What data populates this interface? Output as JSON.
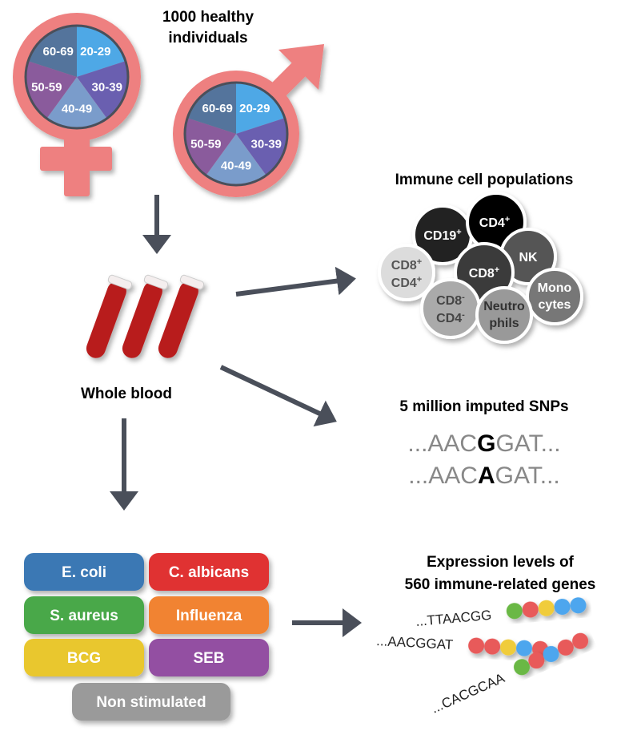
{
  "cohort": {
    "title_line1": "1000 healthy",
    "title_line2": "individuals",
    "age_groups": [
      {
        "label": "20-29",
        "color": "#4ea8e6"
      },
      {
        "label": "30-39",
        "color": "#6a5fb0"
      },
      {
        "label": "40-49",
        "color": "#7a9ccb"
      },
      {
        "label": "50-59",
        "color": "#8a5b9c"
      },
      {
        "label": "60-69",
        "color": "#54749c"
      }
    ],
    "symbol_color": "#ee8080"
  },
  "blood": {
    "label": "Whole blood",
    "tube_color": "#b81c1c"
  },
  "immune": {
    "title": "Immune cell populations",
    "cells": [
      {
        "label": "CD19",
        "sup": "+"
      },
      {
        "label": "CD4",
        "sup": "+"
      },
      {
        "label": "NK",
        "sup": ""
      },
      {
        "label": "CD8",
        "sup": "+",
        "label2": "CD4",
        "sup2": "+"
      },
      {
        "label": "CD8",
        "sup": "+"
      },
      {
        "label": "CD8",
        "sup": "-",
        "label2": "CD4",
        "sup2": "-"
      },
      {
        "label": "Mono",
        "label2": "cytes"
      },
      {
        "label": "Neutro",
        "label2": "phils"
      }
    ]
  },
  "snps": {
    "title": "5 million imputed SNPs",
    "seq1": {
      "pre": "...AAC",
      "var": "G",
      "post": "GAT..."
    },
    "seq2": {
      "pre": "...AAC",
      "var": "A",
      "post": "GAT..."
    }
  },
  "stimuli": [
    {
      "label": "E. coli",
      "color": "#3a78b4"
    },
    {
      "label": "C. albicans",
      "color": "#e03232"
    },
    {
      "label": "S. aureus",
      "color": "#4aa84a"
    },
    {
      "label": "Influenza",
      "color": "#f18330"
    },
    {
      "label": "BCG",
      "color": "#e9c72e"
    },
    {
      "label": "SEB",
      "color": "#9350a2"
    },
    {
      "label": "Non stimulated",
      "color": "#9a9a9a"
    }
  ],
  "expression": {
    "title_line1": "Expression levels of",
    "title_line2": "560 immune-related genes",
    "sequences": [
      "...TTAACGG",
      "...AACGGAT",
      "...CACGCAA"
    ],
    "bead_colors": {
      "green": "#6ab845",
      "red": "#e85a5a",
      "yellow": "#f0cc3a",
      "blue": "#4ea6ee"
    }
  },
  "arrow_color": "#4a4f5a"
}
